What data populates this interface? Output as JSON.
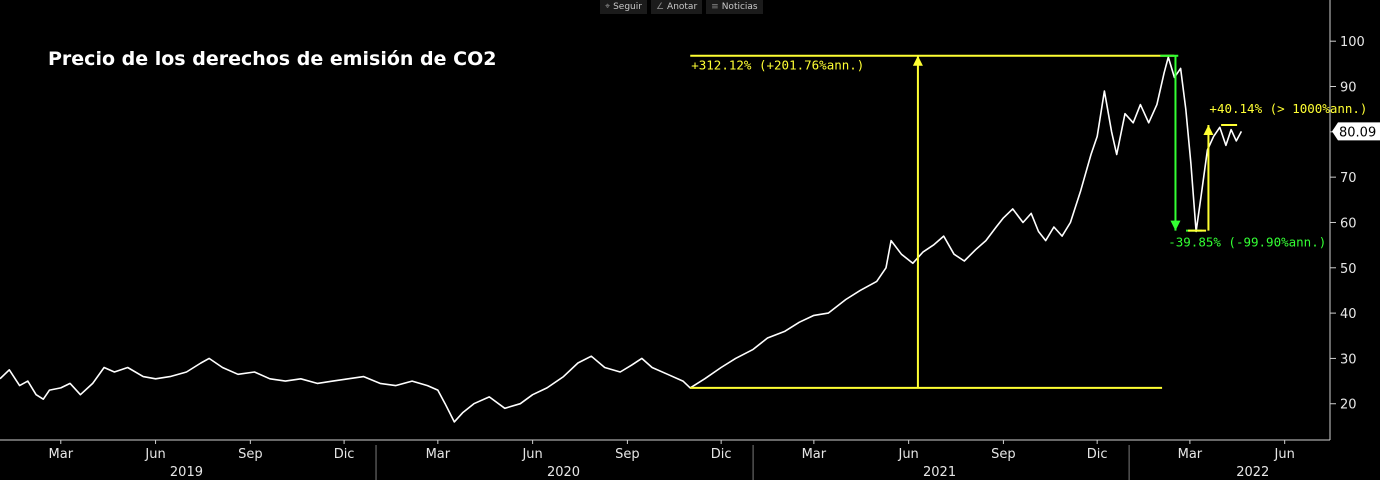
{
  "toolbar": {
    "items": [
      {
        "label": "Seguir",
        "icon": "crosshair-icon"
      },
      {
        "label": "Anotar",
        "icon": "pencil-icon"
      },
      {
        "label": "Noticias",
        "icon": "news-icon"
      }
    ]
  },
  "colors": {
    "background": "#000000",
    "line": "#ffffff",
    "yellow": "#ffff33",
    "green": "#33ff33"
  },
  "chart_data": {
    "type": "line",
    "title": "Precio de los derechos de emisión de CO2",
    "xlabel": "",
    "ylabel": "",
    "ylim": [
      12,
      106
    ],
    "yticks": [
      20,
      30,
      40,
      50,
      60,
      70,
      80,
      90,
      100
    ],
    "x_range": [
      "2019-01-01",
      "2022-07-15"
    ],
    "month_ticks": [
      {
        "label": "Mar",
        "date": "2019-03-01"
      },
      {
        "label": "Jun",
        "date": "2019-06-01"
      },
      {
        "label": "Sep",
        "date": "2019-09-01"
      },
      {
        "label": "Dic",
        "date": "2019-12-01"
      },
      {
        "label": "Mar",
        "date": "2020-03-01"
      },
      {
        "label": "Jun",
        "date": "2020-06-01"
      },
      {
        "label": "Sep",
        "date": "2020-09-01"
      },
      {
        "label": "Dic",
        "date": "2020-12-01"
      },
      {
        "label": "Mar",
        "date": "2021-03-01"
      },
      {
        "label": "Jun",
        "date": "2021-06-01"
      },
      {
        "label": "Sep",
        "date": "2021-09-01"
      },
      {
        "label": "Dic",
        "date": "2021-12-01"
      },
      {
        "label": "Mar",
        "date": "2022-03-01"
      },
      {
        "label": "Jun",
        "date": "2022-06-01"
      }
    ],
    "year_labels": [
      {
        "label": "2019",
        "date": "2019-07-01"
      },
      {
        "label": "2020",
        "date": "2020-07-01"
      },
      {
        "label": "2021",
        "date": "2021-07-01"
      },
      {
        "label": "2022",
        "date": "2022-05-01"
      }
    ],
    "year_separators": [
      "2020-01-01",
      "2021-01-01",
      "2022-01-01"
    ],
    "last_value": 80.09,
    "series": [
      {
        "points": [
          [
            "2019-01-01",
            25.5
          ],
          [
            "2019-01-10",
            27.5
          ],
          [
            "2019-01-20",
            24.0
          ],
          [
            "2019-01-28",
            25.0
          ],
          [
            "2019-02-05",
            22.0
          ],
          [
            "2019-02-12",
            21.0
          ],
          [
            "2019-02-18",
            23.0
          ],
          [
            "2019-03-01",
            23.5
          ],
          [
            "2019-03-10",
            24.5
          ],
          [
            "2019-03-20",
            22.0
          ],
          [
            "2019-04-01",
            24.5
          ],
          [
            "2019-04-12",
            28.0
          ],
          [
            "2019-04-22",
            27.0
          ],
          [
            "2019-05-05",
            28.0
          ],
          [
            "2019-05-20",
            26.0
          ],
          [
            "2019-06-01",
            25.5
          ],
          [
            "2019-06-15",
            26.0
          ],
          [
            "2019-07-01",
            27.0
          ],
          [
            "2019-07-15",
            29.0
          ],
          [
            "2019-07-23",
            30.0
          ],
          [
            "2019-08-05",
            28.0
          ],
          [
            "2019-08-20",
            26.5
          ],
          [
            "2019-09-05",
            27.0
          ],
          [
            "2019-09-20",
            25.5
          ],
          [
            "2019-10-05",
            25.0
          ],
          [
            "2019-10-20",
            25.5
          ],
          [
            "2019-11-05",
            24.5
          ],
          [
            "2019-11-20",
            25.0
          ],
          [
            "2019-12-05",
            25.5
          ],
          [
            "2019-12-20",
            26.0
          ],
          [
            "2020-01-05",
            24.5
          ],
          [
            "2020-01-20",
            24.0
          ],
          [
            "2020-02-05",
            25.0
          ],
          [
            "2020-02-20",
            24.0
          ],
          [
            "2020-03-01",
            23.0
          ],
          [
            "2020-03-08",
            20.0
          ],
          [
            "2020-03-17",
            16.0
          ],
          [
            "2020-03-25",
            18.0
          ],
          [
            "2020-04-05",
            20.0
          ],
          [
            "2020-04-20",
            21.5
          ],
          [
            "2020-05-05",
            19.0
          ],
          [
            "2020-05-20",
            20.0
          ],
          [
            "2020-06-01",
            22.0
          ],
          [
            "2020-06-15",
            23.5
          ],
          [
            "2020-07-01",
            26.0
          ],
          [
            "2020-07-15",
            29.0
          ],
          [
            "2020-07-28",
            30.5
          ],
          [
            "2020-08-10",
            28.0
          ],
          [
            "2020-08-25",
            27.0
          ],
          [
            "2020-09-05",
            28.5
          ],
          [
            "2020-09-15",
            30.0
          ],
          [
            "2020-09-25",
            28.0
          ],
          [
            "2020-10-10",
            26.5
          ],
          [
            "2020-10-25",
            25.0
          ],
          [
            "2020-11-01",
            23.5
          ],
          [
            "2020-11-15",
            25.5
          ],
          [
            "2020-12-01",
            28.0
          ],
          [
            "2020-12-15",
            30.0
          ],
          [
            "2021-01-01",
            32.0
          ],
          [
            "2021-01-15",
            34.5
          ],
          [
            "2021-02-01",
            36.0
          ],
          [
            "2021-02-15",
            38.0
          ],
          [
            "2021-03-01",
            39.5
          ],
          [
            "2021-03-15",
            40.0
          ],
          [
            "2021-04-01",
            43.0
          ],
          [
            "2021-04-15",
            45.0
          ],
          [
            "2021-05-01",
            47.0
          ],
          [
            "2021-05-10",
            50.0
          ],
          [
            "2021-05-15",
            56.0
          ],
          [
            "2021-05-25",
            53.0
          ],
          [
            "2021-06-05",
            51.0
          ],
          [
            "2021-06-15",
            53.5
          ],
          [
            "2021-06-25",
            55.0
          ],
          [
            "2021-07-05",
            57.0
          ],
          [
            "2021-07-15",
            53.0
          ],
          [
            "2021-07-25",
            51.5
          ],
          [
            "2021-08-05",
            54.0
          ],
          [
            "2021-08-15",
            56.0
          ],
          [
            "2021-08-25",
            59.0
          ],
          [
            "2021-09-01",
            61.0
          ],
          [
            "2021-09-10",
            63.0
          ],
          [
            "2021-09-20",
            60.0
          ],
          [
            "2021-09-28",
            62.0
          ],
          [
            "2021-10-05",
            58.0
          ],
          [
            "2021-10-12",
            56.0
          ],
          [
            "2021-10-20",
            59.0
          ],
          [
            "2021-10-28",
            57.0
          ],
          [
            "2021-11-05",
            60.0
          ],
          [
            "2021-11-15",
            67.0
          ],
          [
            "2021-11-25",
            75.0
          ],
          [
            "2021-12-01",
            79.0
          ],
          [
            "2021-12-08",
            89.0
          ],
          [
            "2021-12-15",
            80.0
          ],
          [
            "2021-12-20",
            75.0
          ],
          [
            "2021-12-28",
            84.0
          ],
          [
            "2022-01-05",
            82.0
          ],
          [
            "2022-01-12",
            86.0
          ],
          [
            "2022-01-20",
            82.0
          ],
          [
            "2022-01-28",
            86.0
          ],
          [
            "2022-02-04",
            93.0
          ],
          [
            "2022-02-08",
            96.5
          ],
          [
            "2022-02-14",
            92.0
          ],
          [
            "2022-02-20",
            94.0
          ],
          [
            "2022-02-25",
            85.0
          ],
          [
            "2022-03-02",
            73.0
          ],
          [
            "2022-03-07",
            58.0
          ],
          [
            "2022-03-12",
            66.0
          ],
          [
            "2022-03-18",
            76.0
          ],
          [
            "2022-03-24",
            79.0
          ],
          [
            "2022-03-30",
            81.0
          ],
          [
            "2022-04-05",
            77.0
          ],
          [
            "2022-04-10",
            80.5
          ],
          [
            "2022-04-15",
            78.0
          ],
          [
            "2022-04-20",
            80.09
          ]
        ]
      }
    ],
    "annotations": [
      {
        "label": "+312.12% (+201.76%ann.)",
        "color": "#ffff33",
        "from": {
          "date": "2020-11-01",
          "value": 23.5
        },
        "to": {
          "date": "2022-02-08",
          "value": 96.8
        },
        "arrow_date": "2021-06-10",
        "label_date": "2020-11-01",
        "label_value": 96.8
      },
      {
        "label": "-39.85% (-99.90%ann.)",
        "color": "#33ff33",
        "from": {
          "date": "2022-02-08",
          "value": 96.8
        },
        "to": {
          "date": "2022-03-07",
          "value": 58.2
        },
        "arrow_date": "2022-02-15",
        "label_date": "2022-02-07",
        "label_value": 58.2
      },
      {
        "label": "+40.14% (> 1000%ann.)",
        "color": "#ffff33",
        "from": {
          "date": "2022-03-07",
          "value": 58.2
        },
        "to": {
          "date": "2022-04-10",
          "value": 81.5
        },
        "arrow_date": "2022-03-19",
        "label_date": "2022-03-19",
        "label_value": 81.5
      }
    ]
  }
}
